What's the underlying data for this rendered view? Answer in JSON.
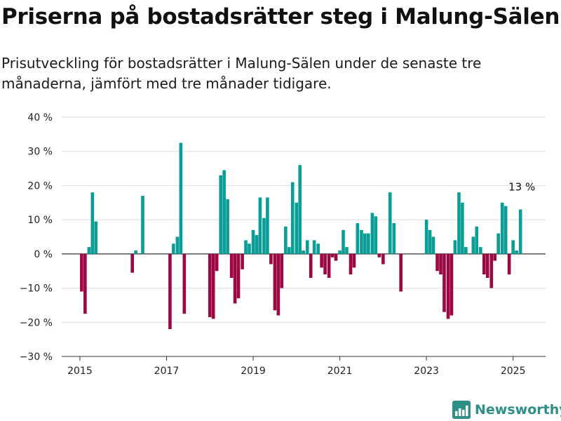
{
  "title": "Priserna på bostadsrätter steg i Malung-Sälen",
  "subtitle": "Prisutveckling för bostadsrätter i Malung-Sälen under de senaste tre månaderna, jämfört med tre månader tidigare.",
  "brand": {
    "name": "Newsworthy",
    "color": "#2d8f85"
  },
  "colors": {
    "positive": "#0a9e96",
    "negative": "#9b0842",
    "grid": "#dddddd",
    "axis": "#333333"
  },
  "chart_data": {
    "type": "bar",
    "ylim": [
      -30,
      40
    ],
    "y_ticks": [
      -30,
      -20,
      -10,
      0,
      10,
      20,
      30,
      40
    ],
    "y_tick_labels": [
      "−30 %",
      "−20 %",
      "−10 %",
      "0 %",
      "10 %",
      "20 %",
      "30 %",
      "40 %"
    ],
    "x_ticks": [
      2015,
      2017,
      2019,
      2021,
      2023,
      2025
    ],
    "x_tick_labels": [
      "2015",
      "2017",
      "2019",
      "2021",
      "2023",
      "2025"
    ],
    "xlim": [
      2014.58,
      2025.75
    ],
    "grid": "horizontal",
    "annotation": {
      "text": "13 %",
      "x": 2025.17,
      "y": 13
    },
    "points": [
      {
        "x": 2015.04,
        "y": -11
      },
      {
        "x": 2015.12,
        "y": -17.5
      },
      {
        "x": 2015.21,
        "y": 2
      },
      {
        "x": 2015.29,
        "y": 18
      },
      {
        "x": 2015.37,
        "y": 9.5
      },
      {
        "x": 2016.21,
        "y": -5.5
      },
      {
        "x": 2016.29,
        "y": 1
      },
      {
        "x": 2016.45,
        "y": 17
      },
      {
        "x": 2017.08,
        "y": -22
      },
      {
        "x": 2017.16,
        "y": 3
      },
      {
        "x": 2017.25,
        "y": 5
      },
      {
        "x": 2017.33,
        "y": 32.5
      },
      {
        "x": 2017.41,
        "y": -17.5
      },
      {
        "x": 2018.0,
        "y": -18.5
      },
      {
        "x": 2018.08,
        "y": -19
      },
      {
        "x": 2018.16,
        "y": -5
      },
      {
        "x": 2018.25,
        "y": 23
      },
      {
        "x": 2018.33,
        "y": 24.5
      },
      {
        "x": 2018.41,
        "y": 16
      },
      {
        "x": 2018.5,
        "y": -7
      },
      {
        "x": 2018.58,
        "y": -14.5
      },
      {
        "x": 2018.66,
        "y": -13
      },
      {
        "x": 2018.75,
        "y": -4.5
      },
      {
        "x": 2018.83,
        "y": 4
      },
      {
        "x": 2018.91,
        "y": 3
      },
      {
        "x": 2019.0,
        "y": 7
      },
      {
        "x": 2019.08,
        "y": 5.5
      },
      {
        "x": 2019.16,
        "y": 16.5
      },
      {
        "x": 2019.25,
        "y": 10.5
      },
      {
        "x": 2019.33,
        "y": 16.5
      },
      {
        "x": 2019.41,
        "y": -3
      },
      {
        "x": 2019.5,
        "y": -16.5
      },
      {
        "x": 2019.58,
        "y": -18
      },
      {
        "x": 2019.66,
        "y": -10
      },
      {
        "x": 2019.75,
        "y": 8
      },
      {
        "x": 2019.83,
        "y": 2
      },
      {
        "x": 2019.91,
        "y": 21
      },
      {
        "x": 2020.0,
        "y": 15
      },
      {
        "x": 2020.08,
        "y": 26
      },
      {
        "x": 2020.16,
        "y": 1
      },
      {
        "x": 2020.25,
        "y": 4
      },
      {
        "x": 2020.33,
        "y": -7
      },
      {
        "x": 2020.41,
        "y": 4
      },
      {
        "x": 2020.5,
        "y": 3
      },
      {
        "x": 2020.58,
        "y": -4
      },
      {
        "x": 2020.66,
        "y": -6
      },
      {
        "x": 2020.75,
        "y": -7
      },
      {
        "x": 2020.83,
        "y": -1
      },
      {
        "x": 2020.91,
        "y": -2
      },
      {
        "x": 2021.0,
        "y": 1
      },
      {
        "x": 2021.08,
        "y": 7
      },
      {
        "x": 2021.16,
        "y": 2
      },
      {
        "x": 2021.25,
        "y": -6
      },
      {
        "x": 2021.33,
        "y": -4
      },
      {
        "x": 2021.41,
        "y": 9
      },
      {
        "x": 2021.5,
        "y": 7
      },
      {
        "x": 2021.58,
        "y": 6
      },
      {
        "x": 2021.66,
        "y": 6
      },
      {
        "x": 2021.75,
        "y": 12
      },
      {
        "x": 2021.83,
        "y": 11
      },
      {
        "x": 2021.91,
        "y": -1
      },
      {
        "x": 2022.0,
        "y": -3
      },
      {
        "x": 2022.16,
        "y": 18
      },
      {
        "x": 2022.25,
        "y": 9
      },
      {
        "x": 2022.41,
        "y": -11
      },
      {
        "x": 2023.0,
        "y": 10
      },
      {
        "x": 2023.08,
        "y": 7
      },
      {
        "x": 2023.16,
        "y": 5
      },
      {
        "x": 2023.25,
        "y": -5
      },
      {
        "x": 2023.33,
        "y": -6
      },
      {
        "x": 2023.41,
        "y": -17
      },
      {
        "x": 2023.5,
        "y": -19
      },
      {
        "x": 2023.58,
        "y": -18
      },
      {
        "x": 2023.66,
        "y": 4
      },
      {
        "x": 2023.75,
        "y": 18
      },
      {
        "x": 2023.83,
        "y": 15
      },
      {
        "x": 2023.91,
        "y": 2
      },
      {
        "x": 2024.08,
        "y": 5
      },
      {
        "x": 2024.16,
        "y": 8
      },
      {
        "x": 2024.25,
        "y": 2
      },
      {
        "x": 2024.33,
        "y": -6
      },
      {
        "x": 2024.41,
        "y": -7
      },
      {
        "x": 2024.5,
        "y": -10
      },
      {
        "x": 2024.58,
        "y": -2
      },
      {
        "x": 2024.66,
        "y": 6
      },
      {
        "x": 2024.75,
        "y": 15
      },
      {
        "x": 2024.83,
        "y": 14
      },
      {
        "x": 2024.91,
        "y": -6
      },
      {
        "x": 2025.0,
        "y": 4
      },
      {
        "x": 2025.08,
        "y": 1
      },
      {
        "x": 2025.17,
        "y": 13
      }
    ]
  }
}
